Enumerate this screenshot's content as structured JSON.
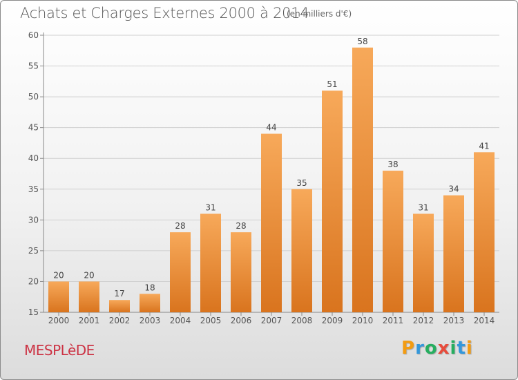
{
  "header": {
    "title": "Achats et Charges Externes 2000 à 2014",
    "unit": "(en milliers d'€)"
  },
  "footer": {
    "commune": "MESPLèDE",
    "logo_letters": [
      "P",
      "r",
      "o",
      "x",
      "i",
      "t",
      "i"
    ],
    "logo_colors": [
      "#f39c12",
      "#3498db",
      "#27ae60",
      "#e74c3c",
      "#27ae60",
      "#3498db",
      "#f39c12"
    ]
  },
  "colors": {
    "bar_top": "#f7a95a",
    "bar_bottom": "#d9741e",
    "axis": "#888888",
    "grid": "#cfcfcf"
  },
  "chart_data": {
    "type": "bar",
    "categories": [
      "2000",
      "2001",
      "2002",
      "2003",
      "2004",
      "2005",
      "2006",
      "2007",
      "2008",
      "2009",
      "2010",
      "2011",
      "2012",
      "2013",
      "2014"
    ],
    "values": [
      20,
      20,
      17,
      18,
      28,
      31,
      28,
      44,
      35,
      51,
      58,
      38,
      31,
      34,
      41
    ],
    "data_labels": [
      "20",
      "20",
      "17",
      "18",
      "28",
      "31",
      "28",
      "44",
      "35",
      "51",
      "58",
      "38",
      "31",
      "34",
      "41"
    ],
    "ylim": [
      15,
      60
    ],
    "yticks": [
      15,
      20,
      25,
      30,
      35,
      40,
      45,
      50,
      55,
      60
    ],
    "grid": true,
    "xlabel": "",
    "ylabel": ""
  }
}
